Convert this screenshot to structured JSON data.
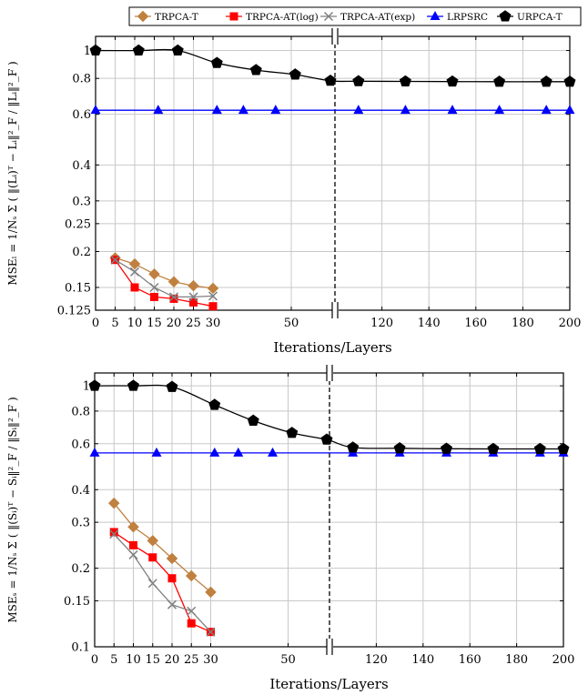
{
  "legend": {
    "entries": [
      {
        "name": "TRPCA-T",
        "color": "#bf8040",
        "marker": "diamond"
      },
      {
        "name": "TRPCA-AT(log)",
        "color": "#ff0000",
        "marker": "square"
      },
      {
        "name": "TRPCA-AT(exp)",
        "color": "#808080",
        "marker": "cross"
      },
      {
        "name": "LRPSRC",
        "color": "#0000ff",
        "marker": "triangle"
      },
      {
        "name": "URPCA-T",
        "color": "#000000",
        "marker": "pentagon"
      }
    ]
  },
  "chart_data": [
    {
      "type": "line",
      "id": "top",
      "xlabel": "Iterations/Layers",
      "ylabel": "MSE_L = (1/N_s) Σ_{i=1}^{N_s} ( ||(L_i)^T − L_i||_F^2 / ||L_i||_F^2 )",
      "ylabel_short": "MSEₗ = 1/Nₛ Σ ( ‖(Lᵢ)ᵀ − Lᵢ‖²_F / ‖Lᵢ‖²_F )",
      "yscale": "log",
      "ylim": [
        0.125,
        1.12
      ],
      "yticks": [
        0.125,
        0.15,
        0.2,
        0.25,
        0.3,
        0.4,
        0.6,
        0.8,
        1
      ],
      "ytick_labels": [
        "0.125",
        "0.15",
        "0.2",
        "0.25",
        "0.3",
        "0.4",
        "0.6",
        "0.8",
        "1"
      ],
      "xticks": [
        0,
        5,
        10,
        15,
        20,
        25,
        30,
        50,
        120,
        140,
        160,
        180,
        200
      ],
      "broken_axis": {
        "left_range": [
          0,
          60
        ],
        "right_range": [
          100,
          200
        ]
      },
      "grid": true,
      "series": [
        {
          "name": "TRPCA-T",
          "x": [
            5,
            10,
            15,
            20,
            25,
            30
          ],
          "y": [
            0.19,
            0.181,
            0.167,
            0.157,
            0.152,
            0.149
          ]
        },
        {
          "name": "TRPCA-AT(log)",
          "x": [
            5,
            10,
            15,
            20,
            25,
            30
          ],
          "y": [
            0.187,
            0.15,
            0.139,
            0.137,
            0.133,
            0.129
          ]
        },
        {
          "name": "TRPCA-AT(exp)",
          "x": [
            5,
            10,
            15,
            20,
            25,
            30
          ],
          "y": [
            0.187,
            0.17,
            0.15,
            0.139,
            0.139,
            0.14
          ]
        },
        {
          "name": "LRPSRC",
          "x": [
            0,
            16,
            31,
            46,
            61,
            110,
            130,
            150,
            170,
            190,
            200
          ],
          "y": [
            0.62,
            0.62,
            0.62,
            0.62,
            0.62,
            0.62,
            0.62,
            0.62,
            0.62,
            0.62,
            0.62
          ],
          "line_x": [
            0,
            200
          ]
        },
        {
          "name": "URPCA-T",
          "x": [
            0,
            11,
            21,
            31,
            41,
            51,
            60,
            110,
            130,
            150,
            170,
            190,
            200
          ],
          "y": [
            1.0,
            1.0,
            1.0,
            0.905,
            0.855,
            0.825,
            0.785,
            0.782,
            0.781,
            0.78,
            0.779,
            0.779,
            0.779
          ]
        }
      ]
    },
    {
      "type": "line",
      "id": "bottom",
      "xlabel": "Iterations/Layers",
      "ylabel": "MSE_S = (1/N_s) Σ_{i=1}^{N_s} ( ||(S_i)^T − S_i||_F^2 / ||S_i||_F^2 )",
      "ylabel_short": "MSEₛ = 1/Nₛ Σ ( ‖(Sᵢ)ᵀ − Sᵢ‖²_F / ‖Sᵢ‖²_F )",
      "yscale": "log",
      "ylim": [
        0.1,
        1.12
      ],
      "yticks": [
        0.1,
        0.15,
        0.2,
        0.3,
        0.4,
        0.6,
        0.8,
        1
      ],
      "ytick_labels": [
        "0.1",
        "0.15",
        "0.2",
        "0.3",
        "0.4",
        "0.6",
        "0.8",
        "1"
      ],
      "xticks": [
        0,
        5,
        10,
        15,
        20,
        25,
        30,
        50,
        120,
        140,
        160,
        180,
        200
      ],
      "broken_axis": {
        "left_range": [
          0,
          60
        ],
        "right_range": [
          100,
          200
        ]
      },
      "grid": true,
      "series": [
        {
          "name": "TRPCA-T",
          "x": [
            5,
            10,
            15,
            20,
            25,
            30
          ],
          "y": [
            0.355,
            0.288,
            0.255,
            0.218,
            0.187,
            0.162
          ]
        },
        {
          "name": "TRPCA-AT(log)",
          "x": [
            5,
            10,
            15,
            20,
            25,
            30
          ],
          "y": [
            0.275,
            0.245,
            0.22,
            0.183,
            0.123,
            0.114
          ]
        },
        {
          "name": "TRPCA-AT(exp)",
          "x": [
            5,
            10,
            15,
            20,
            25,
            30
          ],
          "y": [
            0.27,
            0.225,
            0.175,
            0.145,
            0.137,
            0.114
          ]
        },
        {
          "name": "LRPSRC",
          "x": [
            0,
            16,
            31,
            46,
            61,
            110,
            130,
            150,
            170,
            190,
            200
          ],
          "y": [
            0.553,
            0.553,
            0.553,
            0.553,
            0.553,
            0.553,
            0.553,
            0.553,
            0.553,
            0.553,
            0.553
          ],
          "line_x": [
            0,
            200
          ]
        },
        {
          "name": "URPCA-T",
          "x": [
            0,
            10,
            20,
            31,
            41,
            51,
            60,
            110,
            130,
            150,
            170,
            190,
            200
          ],
          "y": [
            1.0,
            1.0,
            0.99,
            0.845,
            0.735,
            0.66,
            0.622,
            0.58,
            0.576,
            0.574,
            0.573,
            0.573,
            0.573
          ]
        }
      ]
    }
  ]
}
